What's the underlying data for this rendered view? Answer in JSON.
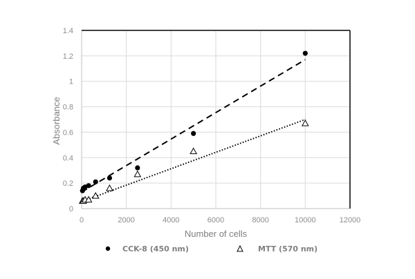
{
  "chart_data": {
    "type": "scatter",
    "title": "",
    "xlabel": "Number of cells",
    "ylabel": "Absorbance",
    "xlim": [
      0,
      12000
    ],
    "ylim": [
      0,
      1.4
    ],
    "x_ticks": [
      "0",
      "2000",
      "4000",
      "6000",
      "8000",
      "10000",
      "12000"
    ],
    "y_ticks": [
      "0",
      "0.2",
      "0.4",
      "0.6",
      "0.8",
      "1",
      "1.2",
      "1.4"
    ],
    "grid": true,
    "legend_position": "bottom",
    "series": [
      {
        "name": "CCK-8 (450 nm)",
        "marker": "filled-circle",
        "color": "#000000",
        "trendline": "dashed",
        "trendline_endpoints": [
          [
            0,
            0.13
          ],
          [
            10000,
            1.17
          ]
        ],
        "x": [
          39,
          78,
          156,
          313,
          625,
          1250,
          2500,
          5000,
          10000
        ],
        "y": [
          0.14,
          0.16,
          0.17,
          0.18,
          0.21,
          0.24,
          0.32,
          0.59,
          1.22
        ]
      },
      {
        "name": "MTT (570 nm)",
        "marker": "open-triangle",
        "color": "#000000",
        "trendline": "dotted",
        "trendline_endpoints": [
          [
            0,
            0.055
          ],
          [
            10000,
            0.7
          ]
        ],
        "x": [
          39,
          78,
          156,
          313,
          625,
          1250,
          2500,
          5000,
          10000
        ],
        "y": [
          0.06,
          0.06,
          0.07,
          0.07,
          0.1,
          0.16,
          0.27,
          0.45,
          0.67
        ]
      }
    ]
  },
  "legend": {
    "items": [
      {
        "label": "CCK-8 (450 nm)",
        "icon": "filled-circle"
      },
      {
        "label": "MTT (570 nm)",
        "icon": "open-triangle"
      }
    ]
  },
  "colors": {
    "gridline": "#d9d9d9",
    "frame": "#000000",
    "text": "#8c8c8c"
  }
}
